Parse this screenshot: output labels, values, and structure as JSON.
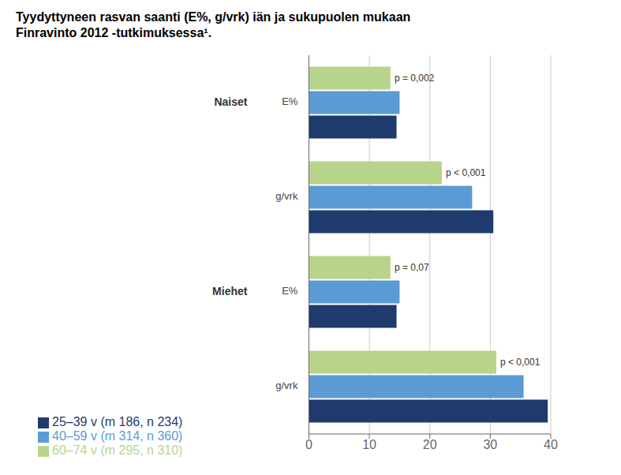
{
  "chart_data": {
    "type": "bar",
    "orientation": "horizontal",
    "title": "Tyydyttyneen rasvan saanti (E%, g/vrk) iän ja sukupuolen mukaan\nFinravinto 2012 -tutkimuksessa¹.",
    "categories": [
      "E%",
      "g/vrk",
      "E%",
      "g/vrk"
    ],
    "category_groups": [
      "Naiset",
      "Naiset",
      "Miehet",
      "Miehet"
    ],
    "annotations": [
      "p = 0,002",
      "p < 0,001",
      "p = 0,07",
      "p < 0,001"
    ],
    "series": [
      {
        "name": "60–74 v (m 295, n 310)",
        "color": "#b8d48a",
        "values": [
          13.5,
          22.0,
          13.5,
          31.0
        ]
      },
      {
        "name": "40–59 v (m 314, n 360)",
        "color": "#5b9bd5",
        "values": [
          15.0,
          27.0,
          15.0,
          35.5
        ]
      },
      {
        "name": "25–39 v (m 186, n 234)",
        "color": "#1f3b6e",
        "values": [
          14.5,
          30.5,
          14.5,
          39.5
        ]
      }
    ],
    "xlim": [
      0,
      40
    ],
    "xticks": [
      0,
      10,
      20,
      30,
      40
    ],
    "grid": true,
    "legend": "bottom"
  }
}
